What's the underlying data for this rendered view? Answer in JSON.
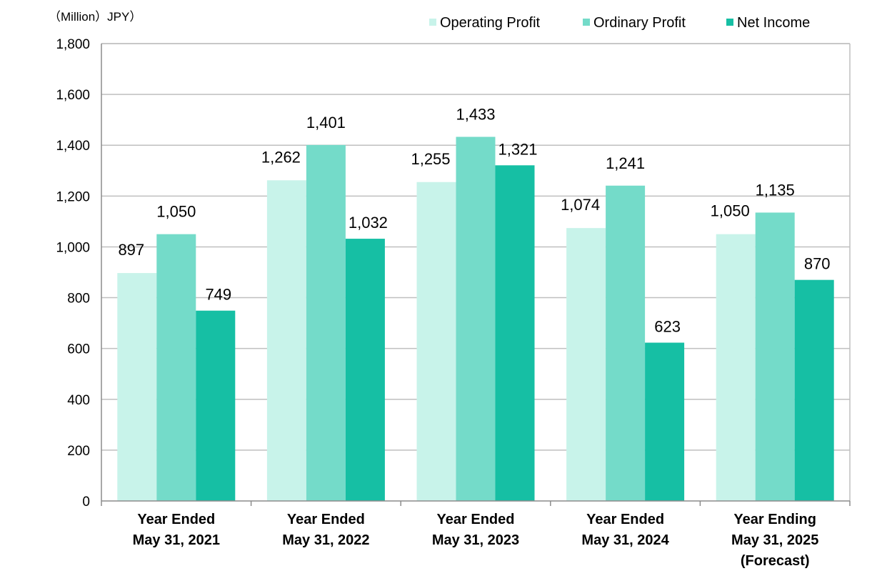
{
  "chart_data": {
    "type": "bar",
    "unit_label": "（Million）JPY）",
    "categories": [
      [
        "Year Ended",
        "May 31, 2021"
      ],
      [
        "Year Ended",
        "May 31, 2022"
      ],
      [
        "Year Ended",
        "May 31, 2023"
      ],
      [
        "Year Ended",
        "May 31, 2024"
      ],
      [
        "Year Ending",
        "May 31, 2025",
        "(Forecast)"
      ]
    ],
    "series": [
      {
        "name": "Operating Profit",
        "color": "#c8f3ea",
        "values": [
          897,
          1262,
          1255,
          1074,
          1050
        ],
        "labels": [
          "897",
          "1,262",
          "1,255",
          "1,074",
          "1,050"
        ]
      },
      {
        "name": "Ordinary Profit",
        "color": "#74dbc9",
        "values": [
          1050,
          1401,
          1433,
          1241,
          1135
        ],
        "labels": [
          "1,050",
          "1,401",
          "1,433",
          "1,241",
          "1,135"
        ]
      },
      {
        "name": "Net Income",
        "color": "#16bfa4",
        "values": [
          749,
          1032,
          1321,
          623,
          870
        ],
        "labels": [
          "749",
          "1,032",
          "1,321",
          "623",
          "870"
        ]
      }
    ],
    "ylim": [
      0,
      1800
    ],
    "yticks": [
      0,
      200,
      400,
      600,
      800,
      1000,
      1200,
      1400,
      1600,
      1800
    ],
    "ytick_labels": [
      "0",
      "200",
      "400",
      "600",
      "800",
      "1,000",
      "1,200",
      "1,400",
      "1,600",
      "1,800"
    ],
    "grid": true,
    "legend_position": "top-right"
  }
}
